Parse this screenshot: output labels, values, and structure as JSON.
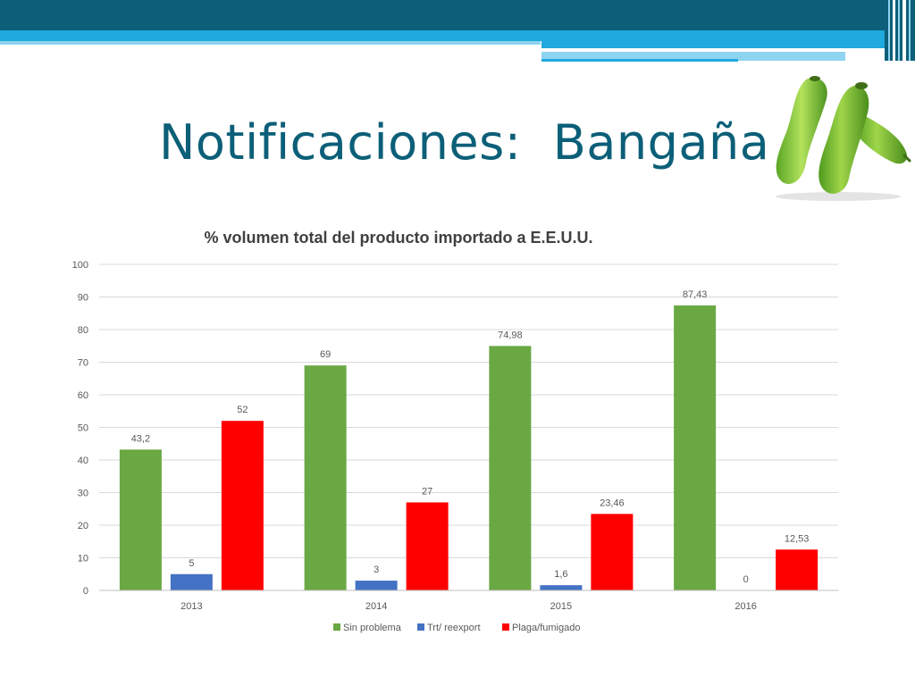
{
  "slide": {
    "title": "Notificaciones:  Bangaña",
    "image_icon": "bottle-gourd-image"
  },
  "colors": {
    "header_dark": "#0c5f78",
    "header_bright": "#1fa9dc",
    "title": "#0c5f78"
  },
  "chart_data": {
    "type": "bar",
    "title": "% volumen total del producto importado a E.E.U.U.",
    "xlabel": "",
    "ylabel": "",
    "categories": [
      "2013",
      "2014",
      "2015",
      "2016"
    ],
    "series": [
      {
        "name": "Sin problema",
        "color": "#6aa843",
        "values": [
          43.2,
          69,
          74.98,
          87.43
        ],
        "labels": [
          "43,2",
          "69",
          "74,98",
          "87,43"
        ]
      },
      {
        "name": "Trt/ reexport",
        "color": "#4472c4",
        "values": [
          5,
          3,
          1.6,
          0
        ],
        "labels": [
          "5",
          "3",
          "1,6",
          "0"
        ]
      },
      {
        "name": "Plaga/fumigado",
        "color": "#ff0000",
        "values": [
          52,
          27,
          23.46,
          12.53
        ],
        "labels": [
          "52",
          "27",
          "23,46",
          "12,53"
        ]
      }
    ],
    "ylim": [
      0,
      100
    ],
    "yticks": [
      0,
      10,
      20,
      30,
      40,
      50,
      60,
      70,
      80,
      90,
      100
    ],
    "grid": true,
    "legend": "bottom"
  }
}
